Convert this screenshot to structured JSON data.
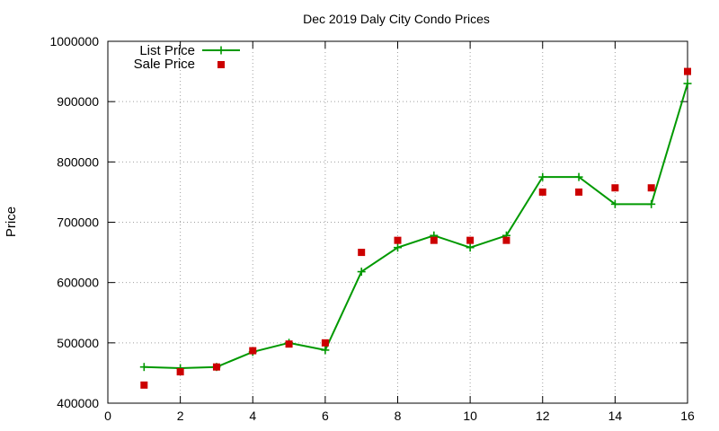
{
  "chart_data": {
    "type": "line",
    "title": "Dec 2019 Daly City Condo Prices",
    "xlabel": "",
    "ylabel": "Price",
    "xlim": [
      0,
      16
    ],
    "ylim": [
      400000,
      1000000
    ],
    "x_ticks": [
      0,
      2,
      4,
      6,
      8,
      10,
      12,
      14,
      16
    ],
    "y_ticks": [
      400000,
      500000,
      600000,
      700000,
      800000,
      900000,
      1000000
    ],
    "grid": true,
    "legend_position": "top-left",
    "series": [
      {
        "name": "List Price",
        "style": "line-with-plus-markers",
        "color": "#009900",
        "x": [
          1,
          2,
          3,
          4,
          5,
          6,
          7,
          8,
          9,
          10,
          11,
          12,
          13,
          14,
          15,
          16
        ],
        "y": [
          460000,
          458000,
          460000,
          485000,
          500000,
          488000,
          618000,
          658000,
          678000,
          658000,
          678000,
          775000,
          775000,
          730000,
          730000,
          930000
        ]
      },
      {
        "name": "Sale Price",
        "style": "square-markers",
        "color": "#cc0000",
        "x": [
          1,
          2,
          3,
          4,
          5,
          6,
          7,
          8,
          9,
          10,
          11,
          12,
          13,
          14,
          15,
          16
        ],
        "y": [
          430000,
          452000,
          460000,
          487000,
          498000,
          500000,
          650000,
          670000,
          670000,
          670000,
          670000,
          750000,
          750000,
          757000,
          757000,
          950000
        ]
      }
    ]
  }
}
